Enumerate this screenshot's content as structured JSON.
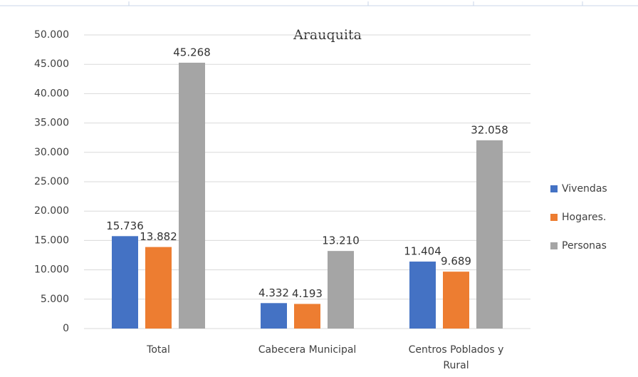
{
  "chart_data": {
    "type": "bar",
    "title": "Arauquita",
    "categories": [
      "Total",
      "Cabecera Municipal",
      "Centros Poblados y Rural"
    ],
    "series": [
      {
        "name": "Vivendas",
        "color": "#4472c4",
        "values": [
          15736,
          4332,
          11404
        ],
        "value_labels": [
          "15.736",
          "4.332",
          "11.404"
        ]
      },
      {
        "name": "Hogares.",
        "color": "#ed7d31",
        "values": [
          13882,
          4193,
          9689
        ],
        "value_labels": [
          "13.882",
          "4.193",
          "9.689"
        ]
      },
      {
        "name": "Personas",
        "color": "#a5a5a5",
        "values": [
          45268,
          13210,
          32058
        ],
        "value_labels": [
          "45.268",
          "13.210",
          "32.058"
        ]
      }
    ],
    "ylim": [
      0,
      50000
    ],
    "yticks": [
      0,
      {
        "value": 5000,
        "label": "5.000"
      },
      {
        "value": 10000,
        "label": "10.000"
      },
      {
        "value": 15000,
        "label": "15.000"
      },
      {
        "value": 20000,
        "label": "20.000"
      },
      {
        "value": 25000,
        "label": "25.000"
      },
      {
        "value": 30000,
        "label": "30.000"
      },
      {
        "value": 35000,
        "label": "35.000"
      },
      {
        "value": 40000,
        "label": "40.000"
      },
      {
        "value": 45000,
        "label": "45.000"
      },
      {
        "value": 50000,
        "label": "50.000"
      }
    ],
    "grid": true,
    "legend": "right"
  }
}
